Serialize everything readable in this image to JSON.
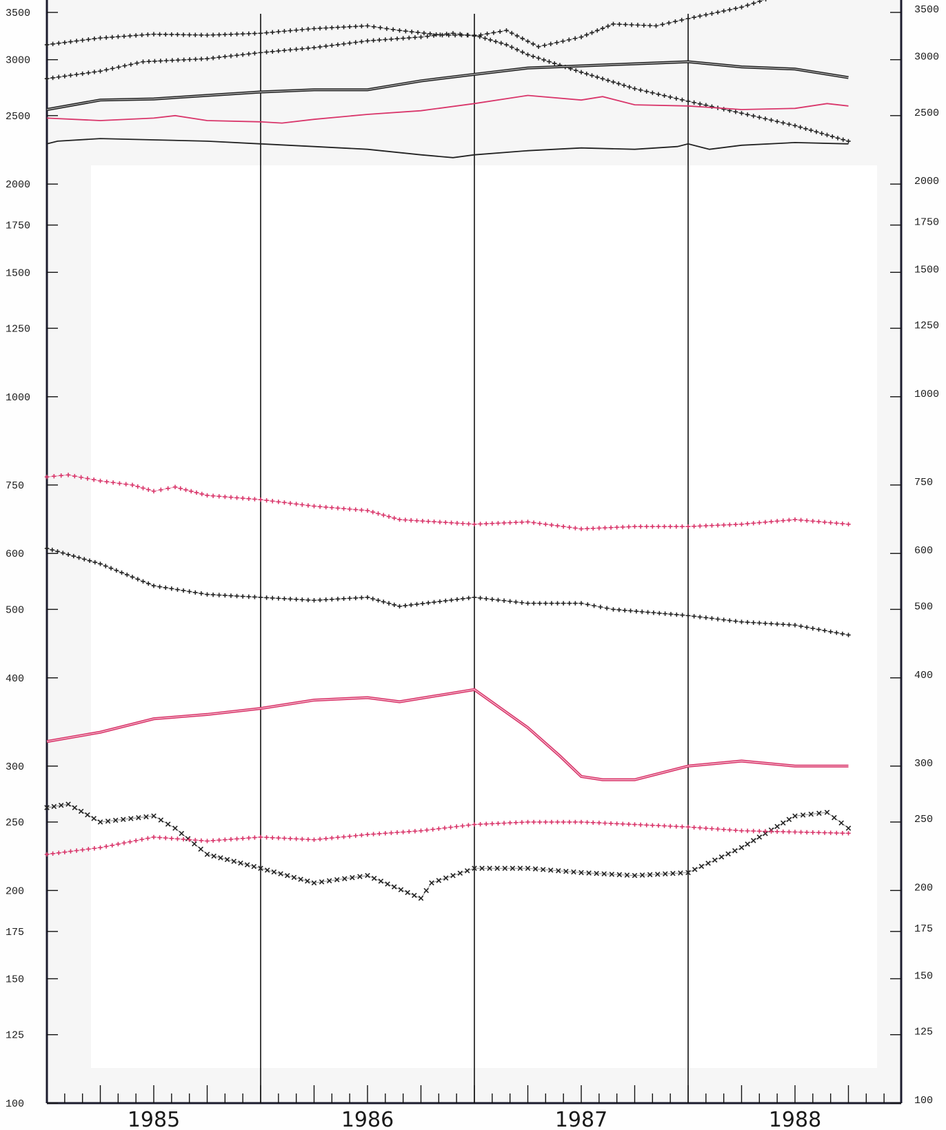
{
  "chart_data": {
    "type": "line",
    "title": "",
    "xlabel": "",
    "ylabel": "",
    "y_scale": "log",
    "ylim": [
      100,
      3700
    ],
    "xlim": [
      1984.5,
      1988.5
    ],
    "x_period_labels": [
      "1985",
      "1986",
      "1987",
      "1988"
    ],
    "y_ticks": [
      100,
      125,
      150,
      175,
      200,
      250,
      300,
      400,
      500,
      600,
      750,
      1000,
      1250,
      1500,
      1750,
      2000,
      2500,
      3000,
      3500
    ],
    "y_tick_labels": [
      "100",
      "125",
      "150",
      "175",
      "200",
      "250",
      "300",
      "400",
      "500",
      "600",
      "750",
      "1000",
      "1250",
      "1500",
      "1750",
      "2000",
      "2500",
      "3000",
      "3500"
    ],
    "year_dividers": [
      1985.5,
      1986.5,
      1987.5
    ],
    "grid": false,
    "legend": "none",
    "colors": {
      "black": "#222222",
      "red": "#d9356a",
      "frame": "#1c1c2e"
    },
    "series": [
      {
        "color": "#222222",
        "style": "plus",
        "x": [
          1984.5,
          1984.75,
          1985.0,
          1985.25,
          1985.5,
          1985.75,
          1986.0,
          1986.15,
          1986.35,
          1986.5,
          1986.65,
          1986.75,
          1987.0,
          1987.25,
          1987.5,
          1987.75,
          1988.0,
          1988.25
        ],
        "y": [
          3150,
          3220,
          3260,
          3250,
          3270,
          3320,
          3350,
          3300,
          3250,
          3250,
          3150,
          3050,
          2880,
          2730,
          2620,
          2520,
          2420,
          2300
        ]
      },
      {
        "color": "#222222",
        "style": "plus",
        "x": [
          1984.5,
          1984.75,
          1984.95,
          1985.25,
          1985.5,
          1985.75,
          1986.0,
          1986.25,
          1986.4,
          1986.5,
          1986.65,
          1986.8,
          1987.0,
          1987.15,
          1987.35,
          1987.5,
          1987.75,
          1987.92
        ],
        "y": [
          2820,
          2890,
          2980,
          3010,
          3070,
          3120,
          3190,
          3230,
          3270,
          3240,
          3300,
          3130,
          3230,
          3370,
          3350,
          3430,
          3560,
          3700
        ]
      },
      {
        "color": "#222222",
        "style": "double",
        "x": [
          1984.5,
          1984.75,
          1985.0,
          1985.25,
          1985.5,
          1985.75,
          1986.0,
          1986.25,
          1986.5,
          1986.75,
          1987.0,
          1987.25,
          1987.5,
          1987.75,
          1988.0,
          1988.25
        ],
        "y": [
          2550,
          2630,
          2640,
          2670,
          2700,
          2720,
          2720,
          2800,
          2860,
          2920,
          2940,
          2960,
          2980,
          2930,
          2910,
          2830
        ]
      },
      {
        "color": "#d9356a",
        "style": "solid",
        "x": [
          1984.5,
          1984.75,
          1985.0,
          1985.1,
          1985.25,
          1985.5,
          1985.6,
          1985.75,
          1986.0,
          1986.25,
          1986.5,
          1986.75,
          1987.0,
          1987.1,
          1987.25,
          1987.5,
          1987.75,
          1988.0,
          1988.15,
          1988.25
        ],
        "y": [
          2480,
          2460,
          2480,
          2500,
          2460,
          2450,
          2440,
          2470,
          2510,
          2540,
          2600,
          2670,
          2630,
          2660,
          2590,
          2580,
          2550,
          2560,
          2600,
          2580
        ]
      },
      {
        "color": "#222222",
        "style": "solid",
        "x": [
          1984.5,
          1984.55,
          1984.75,
          1985.0,
          1985.25,
          1985.5,
          1985.75,
          1986.0,
          1986.25,
          1986.4,
          1986.5,
          1986.75,
          1987.0,
          1987.25,
          1987.45,
          1987.5,
          1987.6,
          1987.75,
          1988.0,
          1988.25
        ],
        "y": [
          2280,
          2300,
          2320,
          2310,
          2300,
          2280,
          2260,
          2240,
          2200,
          2180,
          2200,
          2230,
          2250,
          2240,
          2260,
          2280,
          2240,
          2270,
          2290,
          2280
        ]
      },
      {
        "color": "#d9356a",
        "style": "plus",
        "x": [
          1984.5,
          1984.6,
          1984.75,
          1984.9,
          1985.0,
          1985.1,
          1985.25,
          1985.5,
          1985.75,
          1986.0,
          1986.15,
          1986.5,
          1986.75,
          1987.0,
          1987.25,
          1987.5,
          1987.75,
          1988.0,
          1988.25
        ],
        "y": [
          770,
          775,
          760,
          750,
          735,
          745,
          725,
          715,
          700,
          690,
          670,
          660,
          665,
          650,
          655,
          655,
          660,
          670,
          660
        ]
      },
      {
        "color": "#222222",
        "style": "plus",
        "x": [
          1984.5,
          1984.75,
          1985.0,
          1985.25,
          1985.5,
          1985.75,
          1986.0,
          1986.15,
          1986.5,
          1986.75,
          1987.0,
          1987.15,
          1987.5,
          1987.75,
          1988.0,
          1988.25
        ],
        "y": [
          610,
          580,
          540,
          525,
          520,
          515,
          520,
          505,
          520,
          510,
          510,
          500,
          490,
          480,
          475,
          460
        ]
      },
      {
        "color": "#d9356a",
        "style": "double",
        "x": [
          1984.5,
          1984.75,
          1985.0,
          1985.25,
          1985.5,
          1985.75,
          1986.0,
          1986.15,
          1986.5,
          1986.75,
          1986.9,
          1987.0,
          1987.1,
          1987.25,
          1987.5,
          1987.75,
          1988.0,
          1988.25
        ],
        "y": [
          325,
          335,
          350,
          355,
          362,
          372,
          375,
          370,
          385,
          340,
          310,
          290,
          287,
          287,
          300,
          305,
          300,
          300
        ]
      },
      {
        "color": "#222222",
        "style": "cross",
        "x": [
          1984.5,
          1984.6,
          1984.75,
          1985.0,
          1985.1,
          1985.25,
          1985.5,
          1985.75,
          1986.0,
          1986.25,
          1986.3,
          1986.5,
          1986.75,
          1987.0,
          1987.25,
          1987.5,
          1987.75,
          1988.0,
          1988.15,
          1988.25
        ],
        "y": [
          262,
          265,
          250,
          255,
          245,
          225,
          215,
          205,
          210,
          195,
          205,
          215,
          215,
          212,
          210,
          212,
          230,
          255,
          258,
          245
        ]
      },
      {
        "color": "#d9356a",
        "style": "plus",
        "x": [
          1984.5,
          1984.75,
          1985.0,
          1985.25,
          1985.5,
          1985.75,
          1986.0,
          1986.25,
          1986.5,
          1986.75,
          1987.0,
          1987.25,
          1987.5,
          1987.75,
          1988.0,
          1988.25
        ],
        "y": [
          225,
          230,
          238,
          235,
          238,
          236,
          240,
          243,
          248,
          250,
          250,
          248,
          246,
          243,
          242,
          241
        ]
      }
    ]
  }
}
